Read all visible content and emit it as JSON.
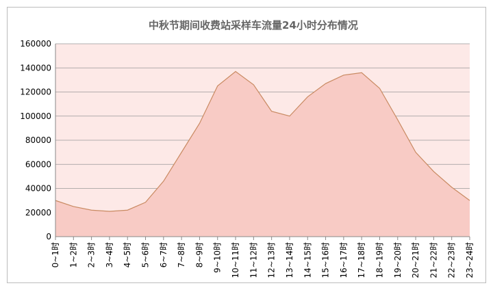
{
  "chart_data": {
    "type": "area",
    "title": "中秋节期间收费站采样车流量24小时分布情况",
    "categories": [
      "0~1时",
      "1~2时",
      "2~3时",
      "3~4时",
      "4~5时",
      "5~6时",
      "6~7时",
      "7~8时",
      "8~9时",
      "9~10时",
      "10~11时",
      "11~12时",
      "12~13时",
      "13~14时",
      "14~15时",
      "15~16时",
      "16~17时",
      "17~18时",
      "18~19时",
      "19~20时",
      "20~21时",
      "21~22时",
      "22~23时",
      "23~24时"
    ],
    "values": [
      30000,
      25000,
      22000,
      21000,
      22000,
      28500,
      46000,
      70000,
      94000,
      125000,
      137000,
      126000,
      104000,
      100000,
      116000,
      127000,
      134000,
      136000,
      123000,
      97000,
      70000,
      54000,
      41000,
      30000
    ],
    "color": "#f8cbc5",
    "line_color": "#c98a62",
    "ylim": [
      0,
      160000
    ],
    "yticks": [
      0,
      20000,
      40000,
      60000,
      80000,
      100000,
      120000,
      140000,
      160000
    ],
    "grid": true
  }
}
